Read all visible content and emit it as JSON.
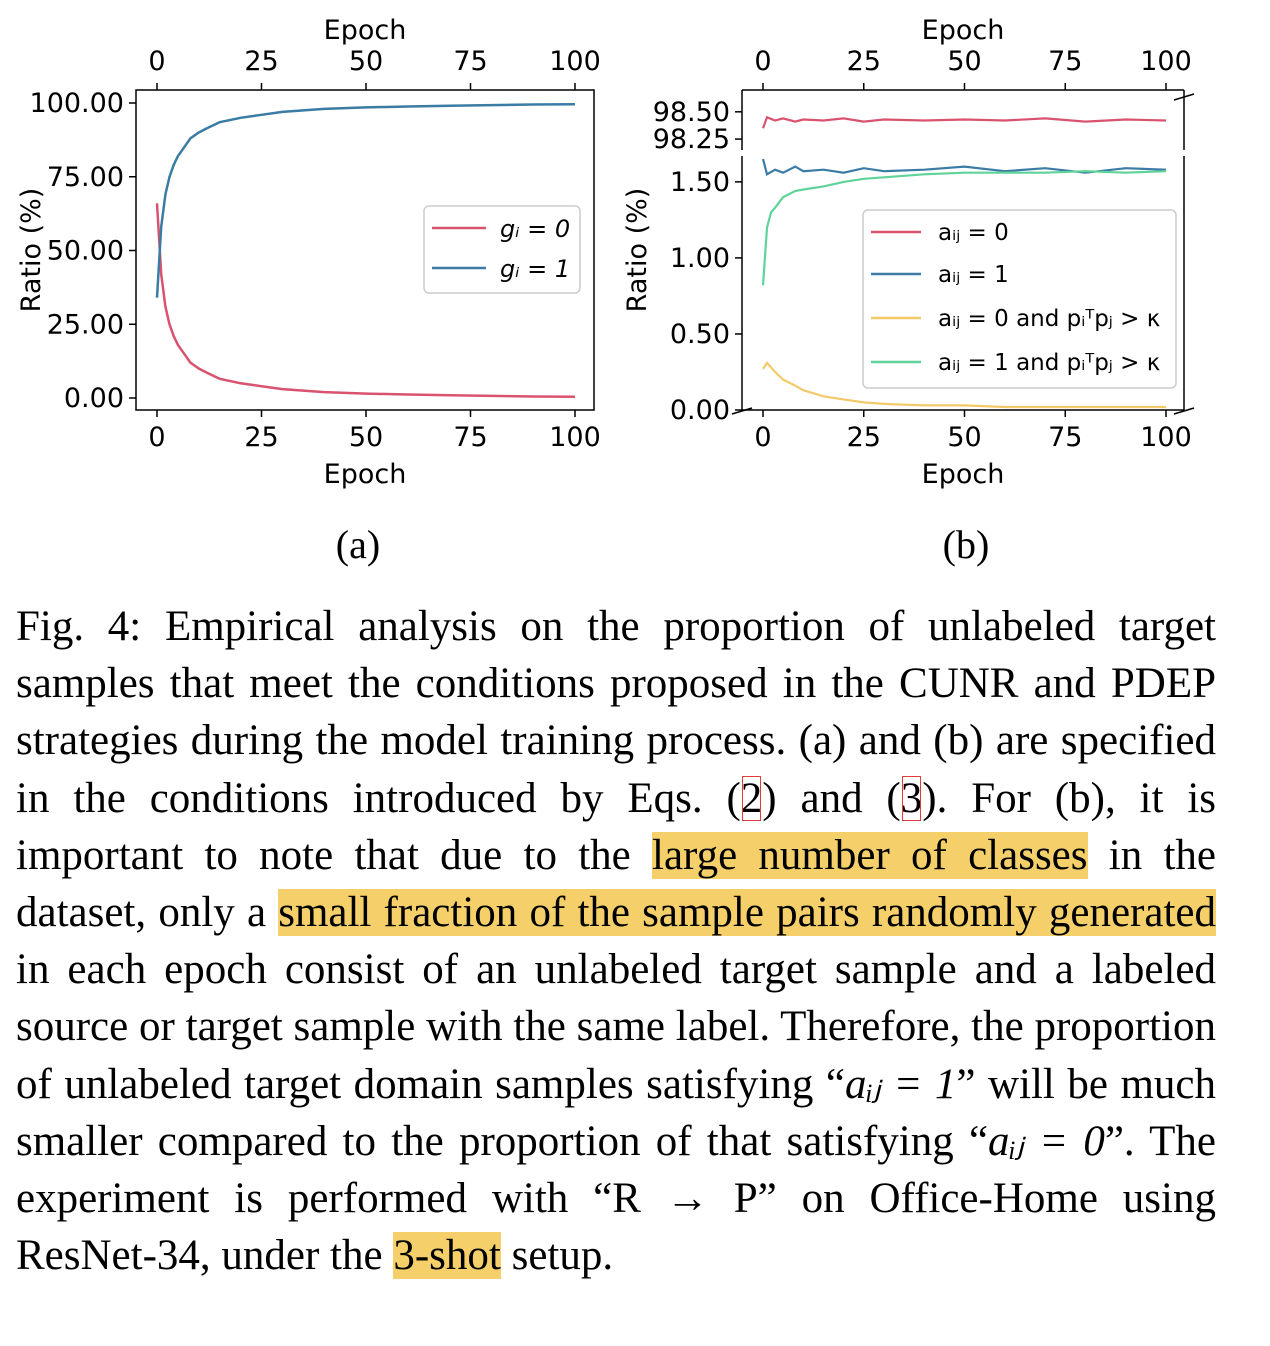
{
  "panel_labels": [
    "(a)",
    "(b)"
  ],
  "chart_data": [
    {
      "type": "line",
      "xlabel": "Epoch",
      "xlabel_top": "Epoch",
      "ylabel": "Ratio (%)",
      "xlim": [
        0,
        100
      ],
      "ylim": [
        0,
        100
      ],
      "x_ticks": [
        "0",
        "25",
        "50",
        "75",
        "100"
      ],
      "y_ticks": [
        "0.00",
        "25.00",
        "50.00",
        "75.00",
        "100.00"
      ],
      "legend_position": "center-right",
      "series": [
        {
          "name": "g_i = 0",
          "legend_label": "gᵢ = 0",
          "color": "#d9536f",
          "x": [
            0,
            1,
            2,
            3,
            4,
            5,
            6,
            8,
            10,
            12,
            15,
            20,
            25,
            30,
            40,
            50,
            60,
            70,
            80,
            90,
            100
          ],
          "y": [
            66,
            42,
            31,
            25,
            21,
            18,
            16,
            12,
            10,
            8.5,
            6.5,
            5,
            4,
            3,
            2,
            1.5,
            1.2,
            0.9,
            0.7,
            0.5,
            0.4
          ]
        },
        {
          "name": "g_i = 1",
          "legend_label": "gᵢ = 1",
          "color": "#3a7ca5",
          "x": [
            0,
            1,
            2,
            3,
            4,
            5,
            6,
            8,
            10,
            12,
            15,
            20,
            25,
            30,
            40,
            50,
            60,
            70,
            80,
            90,
            100
          ],
          "y": [
            34,
            58,
            69,
            75,
            79,
            82,
            84,
            88,
            90,
            91.5,
            93.5,
            95,
            96,
            97,
            98,
            98.5,
            98.8,
            99.1,
            99.3,
            99.5,
            99.6
          ]
        }
      ]
    },
    {
      "type": "line",
      "broken_y_axis": true,
      "xlabel": "Epoch",
      "xlabel_top": "Epoch",
      "ylabel": "Ratio (%)",
      "xlim": [
        0,
        100
      ],
      "ylim_lower": [
        0,
        1.67
      ],
      "ylim_upper": [
        98.15,
        98.7
      ],
      "x_ticks": [
        "0",
        "25",
        "50",
        "75",
        "100"
      ],
      "y_ticks_lower": [
        "0.00",
        "0.50",
        "1.00",
        "1.50"
      ],
      "y_ticks_upper": [
        "98.25",
        "98.50"
      ],
      "legend_position": "lower-right",
      "series": [
        {
          "name": "a_ij = 0",
          "legend_label": "aᵢⱼ = 0",
          "color": "#d9536f",
          "segment": "upper",
          "x": [
            0,
            1,
            3,
            5,
            8,
            10,
            15,
            20,
            25,
            30,
            40,
            50,
            60,
            70,
            80,
            90,
            100
          ],
          "y": [
            98.35,
            98.45,
            98.42,
            98.44,
            98.41,
            98.43,
            98.42,
            98.44,
            98.41,
            98.43,
            98.42,
            98.43,
            98.42,
            98.44,
            98.41,
            98.43,
            98.42
          ]
        },
        {
          "name": "a_ij = 1",
          "legend_label": "aᵢⱼ = 1",
          "color": "#3a7ca5",
          "segment": "lower",
          "x": [
            0,
            1,
            3,
            5,
            8,
            10,
            15,
            20,
            25,
            30,
            40,
            50,
            60,
            70,
            80,
            90,
            100
          ],
          "y": [
            1.65,
            1.55,
            1.58,
            1.56,
            1.6,
            1.57,
            1.58,
            1.56,
            1.59,
            1.57,
            1.58,
            1.6,
            1.57,
            1.59,
            1.56,
            1.59,
            1.58
          ]
        },
        {
          "name": "a_ij = 0 and p_i^T p_j > κ",
          "legend_label": "aᵢⱼ = 0 and pᵢᵀpⱼ > κ",
          "color": "#f3c969",
          "segment": "lower",
          "x": [
            0,
            1,
            3,
            5,
            8,
            10,
            15,
            20,
            25,
            30,
            40,
            50,
            60,
            70,
            80,
            90,
            100
          ],
          "y": [
            0.27,
            0.31,
            0.25,
            0.2,
            0.16,
            0.13,
            0.09,
            0.07,
            0.05,
            0.04,
            0.03,
            0.03,
            0.02,
            0.02,
            0.02,
            0.02,
            0.02
          ]
        },
        {
          "name": "a_ij = 1 and p_i^T p_j > κ",
          "legend_label": "aᵢⱼ = 1 and pᵢᵀpⱼ > κ",
          "color": "#5fd39a",
          "segment": "lower",
          "x": [
            0,
            1,
            2,
            3,
            5,
            8,
            10,
            15,
            20,
            25,
            30,
            40,
            50,
            60,
            70,
            80,
            90,
            100
          ],
          "y": [
            0.82,
            1.2,
            1.3,
            1.33,
            1.4,
            1.44,
            1.45,
            1.47,
            1.5,
            1.52,
            1.53,
            1.55,
            1.56,
            1.56,
            1.56,
            1.57,
            1.56,
            1.57
          ]
        }
      ]
    }
  ],
  "caption": {
    "fig_label": "Fig. 4:",
    "s1": "Empirical analysis on the proportion of unlabeled target samples that meet the conditions proposed in the CUNR and PDEP strategies during the model training process. (a) and (b) are specified in the conditions introduced by Eqs. (",
    "ref2": "2",
    "s2": ") and (",
    "ref3": "3",
    "s3": "). For (b), it is important to note that due to the ",
    "hl1": "large number of classes",
    "s4": " in the dataset, only a ",
    "hl2": "small fraction of the sample pairs randomly generated",
    "s5": " in each epoch consist of an unlabeled target sample and a labeled source or target sample with the same label. Therefore, the proportion of unlabeled target domain samples satisfying “",
    "m1": "aᵢⱼ = 1",
    "s6": "” will be much smaller compared to the proportion of that satisfying “",
    "m2": "aᵢⱼ = 0",
    "s7": "”. The experiment is performed with “R → P” on Office-Home using ResNet-34, under the ",
    "hl3": "3-shot",
    "s8": " setup."
  }
}
